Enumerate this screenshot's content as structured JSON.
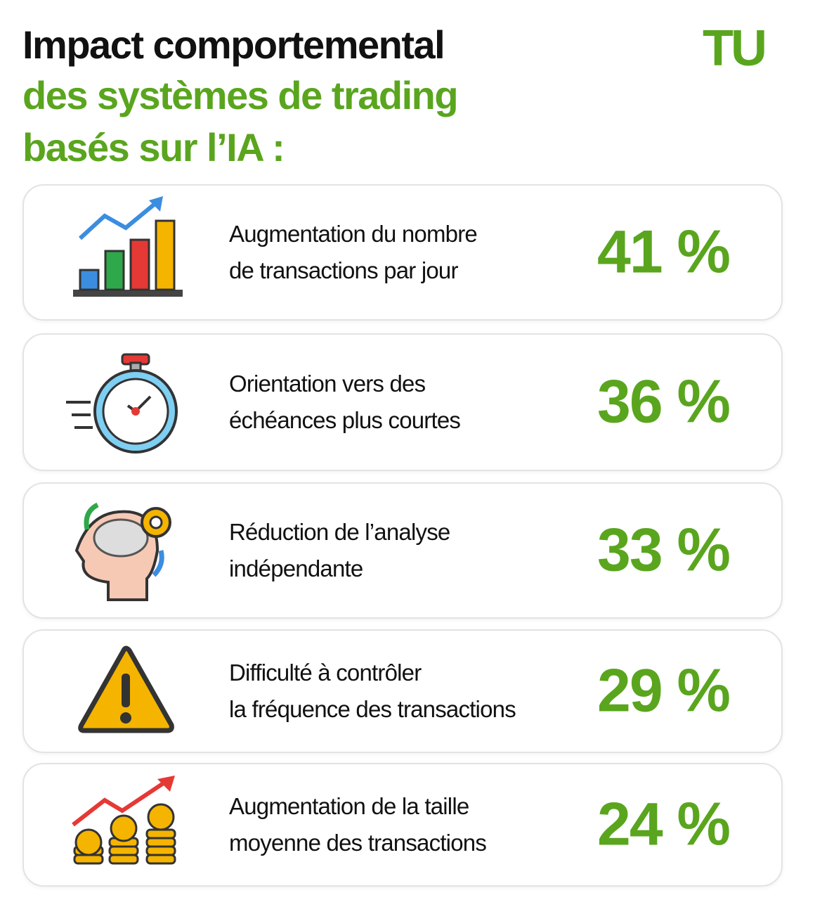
{
  "header": {
    "title_lines": [
      "Impact comportemental",
      "des systèmes de trading",
      "basés sur l’IA :"
    ],
    "logo": "TU"
  },
  "items": [
    {
      "label_lines": [
        "Augmentation du nombre",
        "de transactions par jour"
      ],
      "value": "41 %"
    },
    {
      "label_lines": [
        "Orientation vers des",
        "échéances plus courtes"
      ],
      "value": "36 %"
    },
    {
      "label_lines": [
        "Réduction de l’analyse",
        "indépendante"
      ],
      "value": "33 %"
    },
    {
      "label_lines": [
        "Difficulté à contrôler",
        "la fréquence des transactions"
      ],
      "value": "29 %"
    },
    {
      "label_lines": [
        "Augmentation de la taille",
        "moyenne des transactions"
      ],
      "value": "24 %"
    }
  ]
}
